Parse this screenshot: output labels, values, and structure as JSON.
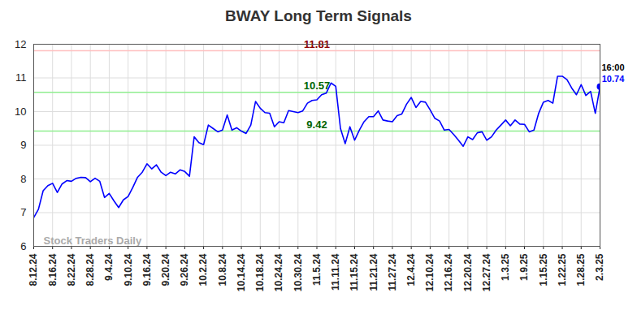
{
  "chart_data": {
    "type": "line",
    "title": "BWAY Long Term Signals",
    "color": "#0000ff",
    "categories": [
      "8.12.24",
      null,
      null,
      null,
      "8.16.24",
      null,
      null,
      null,
      "8.22.24",
      null,
      null,
      null,
      "8.28.24",
      null,
      null,
      null,
      "9.4.24",
      null,
      null,
      null,
      "9.10.24",
      null,
      null,
      null,
      "9.16.24",
      null,
      null,
      null,
      "9.20.24",
      null,
      null,
      null,
      "9.26.24",
      null,
      null,
      null,
      "10.2.24",
      null,
      null,
      null,
      "10.8.24",
      null,
      null,
      null,
      "10.14.24",
      null,
      null,
      null,
      "10.18.24",
      null,
      null,
      null,
      "10.24.24",
      null,
      null,
      null,
      "10.30.24",
      null,
      null,
      null,
      "11.5.24",
      null,
      null,
      null,
      "11.11.24",
      null,
      null,
      null,
      "11.15.24",
      null,
      null,
      null,
      "11.21.24",
      null,
      null,
      null,
      "11.27.24",
      null,
      null,
      null,
      "12.4.24",
      null,
      null,
      null,
      "12.10.24",
      null,
      null,
      null,
      "12.16.24",
      null,
      null,
      null,
      "12.20.24",
      null,
      null,
      null,
      "12.27.24",
      null,
      null,
      null,
      "1.3.25",
      null,
      null,
      null,
      "1.9.25",
      null,
      null,
      null,
      "1.15.25",
      null,
      null,
      null,
      "1.22.25",
      null,
      null,
      null,
      "1.28.25",
      null,
      null,
      null,
      "2.3.25"
    ],
    "values": [
      6.85,
      7.1,
      7.65,
      7.8,
      7.87,
      7.6,
      7.85,
      7.95,
      7.93,
      8.02,
      8.05,
      8.04,
      7.92,
      8.02,
      7.93,
      7.45,
      7.57,
      7.35,
      7.15,
      7.38,
      7.48,
      7.75,
      8.05,
      8.2,
      8.45,
      8.3,
      8.42,
      8.2,
      8.1,
      8.2,
      8.15,
      8.27,
      8.22,
      8.08,
      9.25,
      9.08,
      9.02,
      9.6,
      9.5,
      9.4,
      9.45,
      9.9,
      9.45,
      9.52,
      9.42,
      9.35,
      9.6,
      10.3,
      10.1,
      9.97,
      9.95,
      9.55,
      9.7,
      9.67,
      10.03,
      10.0,
      9.97,
      10.02,
      10.25,
      10.33,
      10.35,
      10.5,
      10.55,
      10.85,
      10.75,
      9.5,
      9.05,
      9.55,
      9.15,
      9.45,
      9.7,
      9.85,
      9.85,
      10.02,
      9.75,
      9.72,
      9.7,
      9.88,
      9.93,
      10.22,
      10.42,
      10.12,
      10.3,
      10.28,
      10.05,
      9.8,
      9.72,
      9.45,
      9.47,
      9.32,
      9.15,
      8.97,
      9.25,
      9.17,
      9.37,
      9.4,
      9.15,
      9.25,
      9.45,
      9.6,
      9.75,
      9.58,
      9.75,
      9.63,
      9.62,
      9.4,
      9.45,
      9.95,
      10.28,
      10.33,
      10.25,
      11.05,
      11.05,
      10.95,
      10.7,
      10.5,
      10.8,
      10.48,
      10.6,
      9.95,
      10.74
    ],
    "ylim": [
      6,
      12
    ],
    "yticks": [
      6,
      7,
      8,
      9,
      10,
      11,
      12
    ],
    "grid": true,
    "signals": [
      {
        "value": 11.81,
        "color": "#ffc0c0",
        "label_color": "#8b0000"
      },
      {
        "value": 10.57,
        "color": "#90ee90",
        "label_color": "#006400"
      },
      {
        "value": 9.42,
        "color": "#90ee90",
        "label_color": "#006400"
      }
    ],
    "annotation": "16:00",
    "watermark": "Stock Traders Daily"
  }
}
